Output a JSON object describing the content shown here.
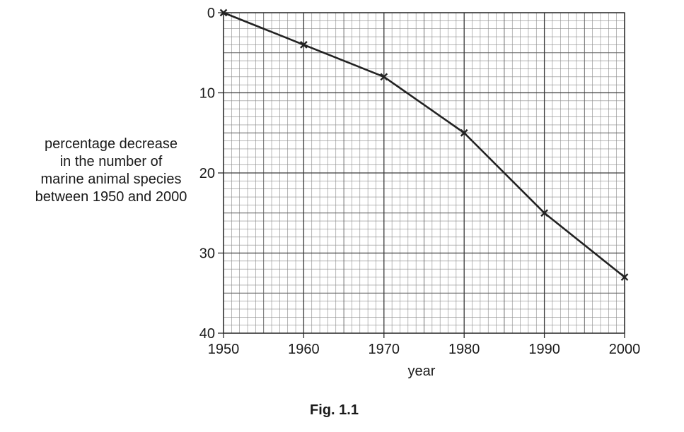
{
  "chart_data": {
    "type": "line",
    "title": "",
    "xlabel": "year",
    "ylabel_lines": [
      "percentage decrease",
      "in the number of",
      "marine animal species",
      "between 1950 and 2000"
    ],
    "x": [
      1950,
      1960,
      1970,
      1980,
      1990,
      2000
    ],
    "series": [
      {
        "values": [
          0,
          4,
          8,
          15,
          25,
          33
        ],
        "marker": "cross",
        "color": "#222222"
      }
    ],
    "xlim": [
      1950,
      2000
    ],
    "ylim": [
      0,
      40
    ],
    "y_axis_inverted": true,
    "x_ticks": [
      1950,
      1960,
      1970,
      1980,
      1990,
      2000
    ],
    "y_ticks": [
      0,
      10,
      20,
      30,
      40
    ],
    "x_tick_labels": [
      "1950",
      "1960",
      "1970",
      "1980",
      "1990",
      "2000"
    ],
    "y_tick_labels": [
      "0",
      "10",
      "20",
      "30",
      "40"
    ],
    "grid": "graph-paper",
    "legend": "none"
  },
  "caption": "Fig. 1.1"
}
